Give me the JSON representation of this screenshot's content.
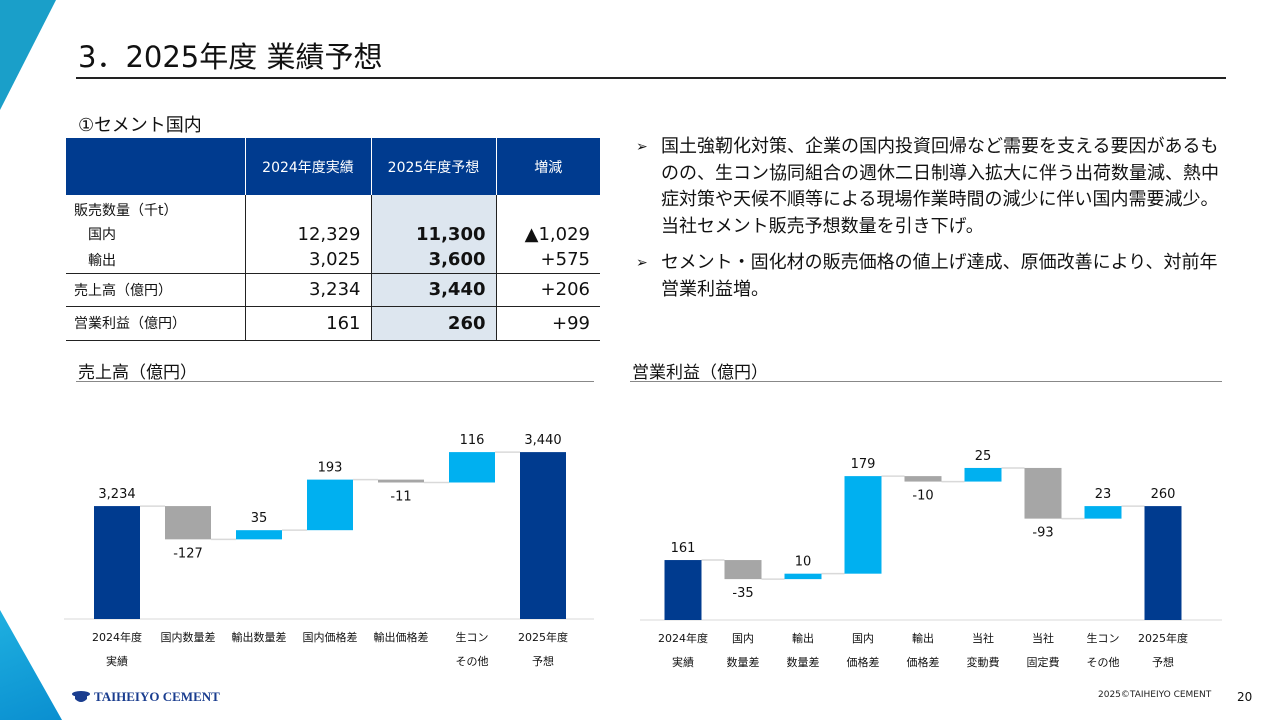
{
  "title": "3．2025年度 業績予想",
  "subtitle": "①セメント国内",
  "table": {
    "headers": [
      "",
      "2024年度実績",
      "2025年度予想",
      "増減"
    ],
    "group_label": "販売数量（千t）",
    "rows": [
      {
        "label": "国内",
        "actual": "12,329",
        "forecast": "11,300",
        "change": "▲1,029"
      },
      {
        "label": "輸出",
        "actual": "3,025",
        "forecast": "3,600",
        "change": "+575"
      },
      {
        "label": "売上高（億円）",
        "actual": "3,234",
        "forecast": "3,440",
        "change": "+206"
      },
      {
        "label": "営業利益（億円）",
        "actual": "161",
        "forecast": "260",
        "change": "+99"
      }
    ]
  },
  "bullets": [
    {
      "marker": "➢",
      "text": "国土強靭化対策、企業の国内投資回帰など需要を支える要因があるものの、生コン協同組合の週休二日制導入拡大に伴う出荷数量減、熱中症対策や天候不順等による現場作業時間の減少に伴い国内需要減少。当社セメント販売予想数量を引き下げ。"
    },
    {
      "marker": "➢",
      "text": "セメント・固化材の販売価格の値上げ達成、原価改善により、対前年営業利益増。"
    }
  ],
  "colors": {
    "total": "#003b8f",
    "increase": "#00b0f0",
    "decrease": "#a6a6a6",
    "header": "#003b8f",
    "forecast_fill": "#dde6ef",
    "accent": "#1a9fc9"
  },
  "chart_data": [
    {
      "type": "bar",
      "subtype": "waterfall",
      "title": "売上高（億円）",
      "categories": [
        [
          "2024年度",
          "実績"
        ],
        [
          "国内数量差"
        ],
        [
          "輸出数量差"
        ],
        [
          "国内価格差"
        ],
        [
          "輸出価格差"
        ],
        [
          "生コン",
          "その他"
        ],
        [
          "2025年度",
          "予想"
        ]
      ],
      "kinds": [
        "total",
        "delta",
        "delta",
        "delta",
        "delta",
        "delta",
        "total"
      ],
      "values": [
        3234,
        -127,
        35,
        193,
        -11,
        116,
        3440
      ],
      "labels": [
        "3,234",
        "-127",
        "35",
        "193",
        "-11",
        "116",
        "3,440"
      ]
    },
    {
      "type": "bar",
      "subtype": "waterfall",
      "title": "営業利益（億円）",
      "categories": [
        [
          "2024年度",
          "実績"
        ],
        [
          "国内",
          "数量差"
        ],
        [
          "輸出",
          "数量差"
        ],
        [
          "国内",
          "価格差"
        ],
        [
          "輸出",
          "価格差"
        ],
        [
          "当社",
          "変動費"
        ],
        [
          "当社",
          "固定費"
        ],
        [
          "生コン",
          "その他"
        ],
        [
          "2025年度",
          "予想"
        ]
      ],
      "kinds": [
        "total",
        "delta",
        "delta",
        "delta",
        "delta",
        "delta",
        "delta",
        "delta",
        "total"
      ],
      "values": [
        161,
        -35,
        10,
        179,
        -10,
        25,
        -93,
        23,
        260
      ],
      "labels": [
        "161",
        "-35",
        "10",
        "179",
        "-10",
        "25",
        "-93",
        "23",
        "260"
      ]
    }
  ],
  "footer": {
    "logo": "TAIHEIYO CEMENT",
    "copyright": "2025©TAIHEIYO CEMENT",
    "page": "20"
  }
}
